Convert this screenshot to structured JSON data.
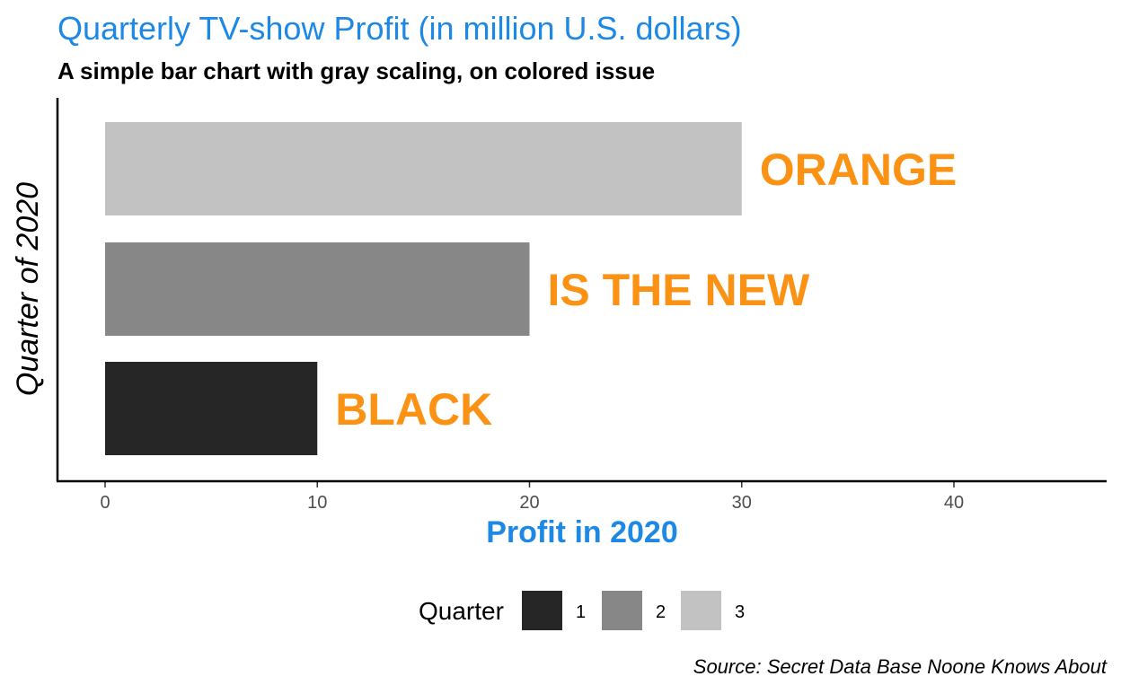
{
  "chart_data": {
    "type": "bar",
    "orientation": "horizontal",
    "title": "Quarterly TV-show Profit (in million U.S. dollars)",
    "subtitle": "A simple bar chart with gray scaling, on colored issue",
    "xlabel": "Profit in 2020",
    "ylabel": "Quarter of 2020",
    "caption": "Source: Secret Data Base Noone Knows About",
    "categories": [
      "1",
      "2",
      "3"
    ],
    "values": [
      10,
      20,
      30
    ],
    "bar_labels": [
      "BLACK",
      "IS THE NEW",
      "ORANGE"
    ],
    "bar_colors": [
      "#262626",
      "#878787",
      "#c2c2c2"
    ],
    "xlim": [
      0,
      46.3
    ],
    "xticks": [
      0,
      10,
      20,
      30,
      40
    ],
    "grid": false,
    "legend": {
      "title": "Quarter",
      "position": "bottom",
      "entries": [
        "1",
        "2",
        "3"
      ]
    },
    "colors": {
      "title": "#1e88e5",
      "subtitle": "#000000",
      "axis_title": "#1e88e5",
      "bar_label": "#fb9214",
      "caption": "#000000",
      "tick_label": "#4d4d4d"
    }
  }
}
